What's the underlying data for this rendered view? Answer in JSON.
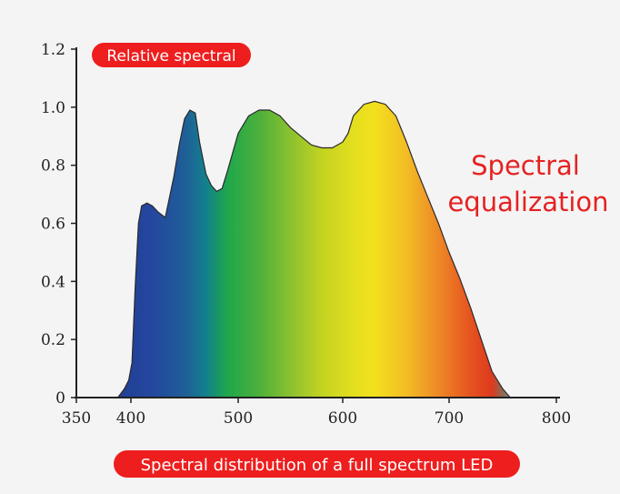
{
  "chart_data": {
    "type": "area",
    "title": "Spectral distribution of a full spectrum LED",
    "ylabel": "Relative spectral",
    "annotation": [
      "Spectral",
      "equalization"
    ],
    "x_ticks": [
      350,
      400,
      500,
      600,
      700,
      800
    ],
    "y_ticks": [
      {
        "value": 0,
        "label": "0"
      },
      {
        "value": 0.2,
        "label": "0.2"
      },
      {
        "value": 0.4,
        "label": "0.4"
      },
      {
        "value": 0.6,
        "label": "0.6"
      },
      {
        "value": 0.8,
        "label": "0.8"
      },
      {
        "value": 1.0,
        "label": "1.0"
      },
      {
        "value": 1.2,
        "label": "1.2"
      }
    ],
    "xlim": [
      350,
      800
    ],
    "ylim": [
      0,
      1.2
    ],
    "grid": false,
    "series": [
      {
        "x": [
          388,
          394,
          398,
          401,
          404,
          407,
          410,
          415,
          420,
          425,
          432,
          440,
          445,
          450,
          455,
          460,
          464,
          470,
          475,
          480,
          485,
          490,
          500,
          510,
          520,
          530,
          540,
          550,
          560,
          570,
          580,
          590,
          600,
          605,
          610,
          620,
          630,
          640,
          650,
          660,
          670,
          680,
          690,
          700,
          710,
          720,
          730,
          740,
          750,
          757
        ],
        "y": [
          0.0,
          0.03,
          0.06,
          0.12,
          0.38,
          0.6,
          0.66,
          0.67,
          0.66,
          0.64,
          0.62,
          0.76,
          0.87,
          0.96,
          0.99,
          0.98,
          0.88,
          0.77,
          0.73,
          0.71,
          0.72,
          0.78,
          0.91,
          0.97,
          0.99,
          0.99,
          0.97,
          0.93,
          0.9,
          0.87,
          0.86,
          0.86,
          0.88,
          0.91,
          0.97,
          1.01,
          1.02,
          1.01,
          0.97,
          0.88,
          0.78,
          0.69,
          0.6,
          0.5,
          0.41,
          0.31,
          0.2,
          0.09,
          0.03,
          0.0
        ]
      }
    ]
  },
  "colors": {
    "pill": "#ee1e1e",
    "annotation": "#e52222",
    "axis": "#222222",
    "outline": "#2a2a2a",
    "spectrum_stops": [
      {
        "nm": 388,
        "color": "#223f95"
      },
      {
        "nm": 420,
        "color": "#24479f"
      },
      {
        "nm": 450,
        "color": "#1f5e98"
      },
      {
        "nm": 470,
        "color": "#13808d"
      },
      {
        "nm": 490,
        "color": "#1fa74c"
      },
      {
        "nm": 520,
        "color": "#4cb03a"
      },
      {
        "nm": 550,
        "color": "#8bc12f"
      },
      {
        "nm": 580,
        "color": "#c3d321"
      },
      {
        "nm": 610,
        "color": "#e3df1e"
      },
      {
        "nm": 630,
        "color": "#f3e01d"
      },
      {
        "nm": 660,
        "color": "#f2bd25"
      },
      {
        "nm": 690,
        "color": "#ee8826"
      },
      {
        "nm": 720,
        "color": "#e6531f"
      },
      {
        "nm": 740,
        "color": "#dd3a1e"
      },
      {
        "nm": 750,
        "color": "#8c6a55"
      },
      {
        "nm": 757,
        "color": "#8a8580"
      }
    ]
  }
}
